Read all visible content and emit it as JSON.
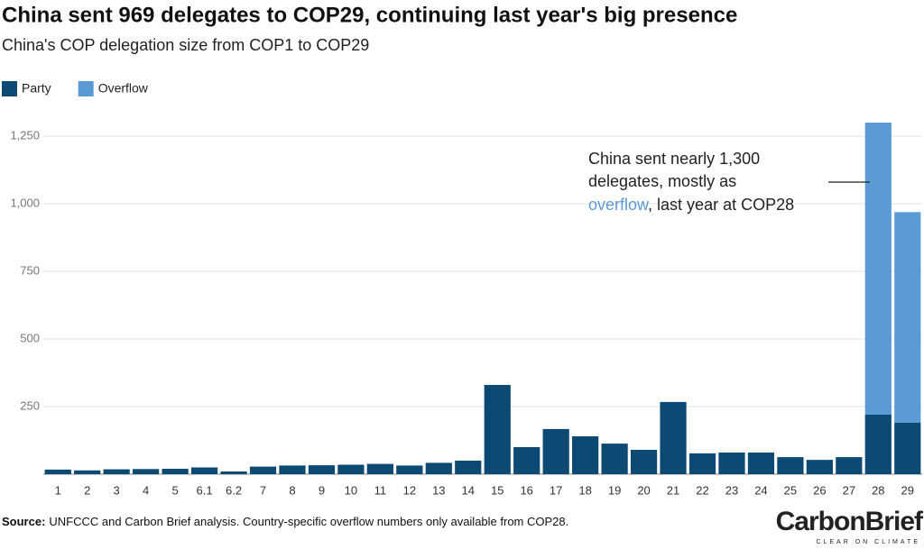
{
  "chart_data": {
    "type": "stacked-bar",
    "title": "China sent 969 delegates to COP29, continuing last year's big presence",
    "subtitle": "China's COP delegation size from COP1 to COP29",
    "categories": [
      "1",
      "2",
      "3",
      "4",
      "5",
      "6.1",
      "6.2",
      "7",
      "8",
      "9",
      "10",
      "11",
      "12",
      "13",
      "14",
      "15",
      "16",
      "17",
      "18",
      "19",
      "20",
      "21",
      "22",
      "23",
      "24",
      "25",
      "26",
      "27",
      "28",
      "29"
    ],
    "series": [
      {
        "name": "Party",
        "color": "#0c4a74",
        "values": [
          17,
          14,
          18,
          19,
          20,
          25,
          10,
          28,
          32,
          33,
          35,
          38,
          32,
          42,
          50,
          330,
          100,
          167,
          140,
          113,
          90,
          267,
          77,
          80,
          80,
          63,
          53,
          63,
          220,
          190
        ]
      },
      {
        "name": "Overflow",
        "color": "#5b9bd5",
        "values": [
          null,
          null,
          null,
          null,
          null,
          null,
          null,
          null,
          null,
          null,
          null,
          null,
          null,
          null,
          null,
          null,
          null,
          null,
          null,
          null,
          null,
          null,
          null,
          null,
          null,
          null,
          null,
          null,
          1080,
          779
        ]
      }
    ],
    "ylim": [
      0,
      1300
    ],
    "yticks": [
      250,
      500,
      750,
      {
        "value": 1000,
        "label": "1,000"
      },
      {
        "value": 1250,
        "label": "1,250"
      }
    ],
    "grid": true,
    "annotation": [
      [
        "China sent nearly 1,300"
      ],
      [
        "delegates, mostly as"
      ],
      [
        "overflow",
        ", last year at COP28"
      ]
    ],
    "source_label": "Source:",
    "source": "UNFCCC and Carbon Brief analysis. Country-specific overflow numbers only available from COP28.",
    "logo": "CarbonBrief",
    "logo_tagline": "CLEAR ON CLIMATE"
  }
}
